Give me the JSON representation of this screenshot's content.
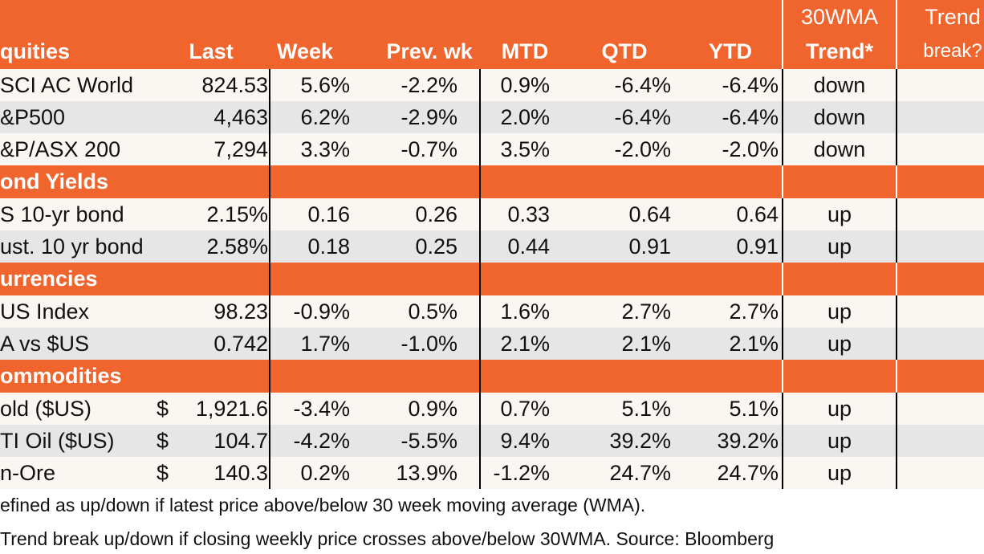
{
  "header": {
    "col_equities": "quities",
    "col_last": "Last",
    "col_week": "Week",
    "col_prevwk": "Prev. wk",
    "col_mtd": "MTD",
    "col_qtd": "QTD",
    "col_ytd": "YTD",
    "col_trend_line1": "30WMA",
    "col_trend_line2": "Trend*",
    "col_break_line1": "Trend",
    "col_break_line2": "break?"
  },
  "sections": [
    {
      "title": "",
      "rows": [
        {
          "name": "SCI AC World",
          "currency": "",
          "last": "824.53",
          "week": "5.6%",
          "prev": "-2.2%",
          "mtd": "0.9%",
          "qtd": "-6.4%",
          "ytd": "-6.4%",
          "trend": "down",
          "break": ""
        },
        {
          "name": "&P500",
          "currency": "",
          "last": "4,463",
          "week": "6.2%",
          "prev": "-2.9%",
          "mtd": "2.0%",
          "qtd": "-6.4%",
          "ytd": "-6.4%",
          "trend": "down",
          "break": ""
        },
        {
          "name": "&P/ASX 200",
          "currency": "",
          "last": "7,294",
          "week": "3.3%",
          "prev": "-0.7%",
          "mtd": "3.5%",
          "qtd": "-2.0%",
          "ytd": "-2.0%",
          "trend": "down",
          "break": ""
        }
      ]
    },
    {
      "title": "ond Yields",
      "rows": [
        {
          "name": "S 10-yr bond",
          "currency": "",
          "last": "2.15%",
          "week": "0.16",
          "prev": "0.26",
          "mtd": "0.33",
          "qtd": "0.64",
          "ytd": "0.64",
          "trend": "up",
          "break": ""
        },
        {
          "name": "ust. 10 yr bond",
          "currency": "",
          "last": "2.58%",
          "week": "0.18",
          "prev": "0.25",
          "mtd": "0.44",
          "qtd": "0.91",
          "ytd": "0.91",
          "trend": "up",
          "break": ""
        }
      ]
    },
    {
      "title": "urrencies",
      "rows": [
        {
          "name": "US Index",
          "currency": "",
          "last": "98.23",
          "week": "-0.9%",
          "prev": "0.5%",
          "mtd": "1.6%",
          "qtd": "2.7%",
          "ytd": "2.7%",
          "trend": "up",
          "break": ""
        },
        {
          "name": "A vs $US",
          "currency": "",
          "last": "0.742",
          "week": "1.7%",
          "prev": "-1.0%",
          "mtd": "2.1%",
          "qtd": "2.1%",
          "ytd": "2.1%",
          "trend": "up",
          "break": ""
        }
      ]
    },
    {
      "title": "ommodities",
      "rows": [
        {
          "name": "old ($US)",
          "currency": "$",
          "last": "1,921.6",
          "week": "-3.4%",
          "prev": "0.9%",
          "mtd": "0.7%",
          "qtd": "5.1%",
          "ytd": "5.1%",
          "trend": "up",
          "break": ""
        },
        {
          "name": "TI Oil ($US)",
          "currency": "$",
          "last": "104.7",
          "week": "-4.2%",
          "prev": "-5.5%",
          "mtd": "9.4%",
          "qtd": "39.2%",
          "ytd": "39.2%",
          "trend": "up",
          "break": ""
        },
        {
          "name": "n-Ore",
          "currency": "$",
          "last": "140.3",
          "week": "0.2%",
          "prev": "13.9%",
          "mtd": "-1.2%",
          "qtd": "24.7%",
          "ytd": "24.7%",
          "trend": "up",
          "break": ""
        }
      ]
    }
  ],
  "footnotes": [
    "efined as up/down if latest price above/below 30 week moving average (WMA).",
    "Trend break up/down if closing weekly price crosses above/below 30WMA.  Source: Bloomberg"
  ],
  "colors": {
    "accent": "#f0642d",
    "shaded_row": "#e6e6e6",
    "plain_row": "#faf7f3"
  }
}
